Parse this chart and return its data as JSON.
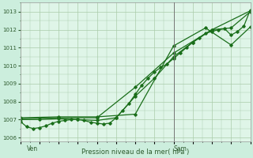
{
  "bg_color": "#cceedd",
  "plot_bg_color": "#dff5e8",
  "grid_color": "#aaccaa",
  "line_color": "#1a6e1a",
  "axis_color": "#777777",
  "xlabel": "Pression niveau de la mer( hPa )",
  "xtick_labels": [
    "Ven",
    "Sam"
  ],
  "ylim": [
    1005.8,
    1013.5
  ],
  "yticks": [
    1006,
    1007,
    1008,
    1009,
    1010,
    1011,
    1012,
    1013
  ],
  "vline_x": 48,
  "xlim": [
    0,
    72
  ],
  "ven_x": 2,
  "sam_x": 48,
  "line1_x": [
    0,
    2,
    4,
    6,
    8,
    10,
    12,
    14,
    16,
    18,
    20,
    22,
    24,
    26,
    28,
    30,
    32,
    34,
    36,
    38,
    40,
    42,
    44,
    46,
    48,
    50,
    52,
    54,
    56,
    58,
    60,
    62,
    64,
    66,
    68,
    70,
    72
  ],
  "line1_y": [
    1006.9,
    1006.6,
    1006.5,
    1006.55,
    1006.65,
    1006.8,
    1006.9,
    1006.95,
    1007.0,
    1007.0,
    1006.95,
    1006.85,
    1006.8,
    1006.75,
    1006.8,
    1007.1,
    1007.5,
    1007.9,
    1008.4,
    1008.9,
    1009.3,
    1009.65,
    1009.9,
    1010.1,
    1010.4,
    1010.7,
    1011.0,
    1011.3,
    1011.55,
    1011.8,
    1011.9,
    1012.0,
    1012.05,
    1011.7,
    1011.9,
    1012.2,
    1013.1
  ],
  "line2_x": [
    0,
    6,
    12,
    18,
    24,
    30,
    36,
    42,
    48,
    54,
    60,
    66,
    72
  ],
  "line2_y": [
    1007.0,
    1007.0,
    1007.05,
    1007.0,
    1006.95,
    1007.1,
    1008.3,
    1009.3,
    1010.5,
    1011.3,
    1012.0,
    1012.1,
    1013.0
  ],
  "line3_x": [
    0,
    12,
    24,
    36,
    48,
    60,
    72
  ],
  "line3_y": [
    1007.05,
    1007.1,
    1007.1,
    1008.8,
    1010.7,
    1012.0,
    1013.05
  ],
  "line4_x": [
    0,
    12,
    24,
    36,
    48,
    58,
    66,
    72
  ],
  "line4_y": [
    1007.1,
    1007.15,
    1007.15,
    1007.3,
    1011.1,
    1012.1,
    1011.15,
    1012.15
  ],
  "figsize": [
    3.2,
    2.0
  ],
  "dpi": 100
}
